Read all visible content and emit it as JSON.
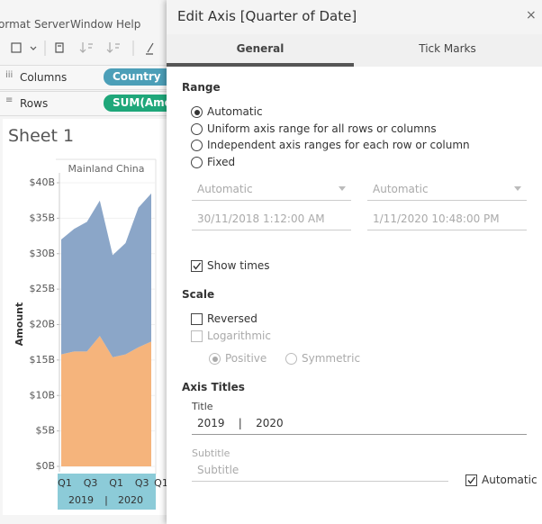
{
  "menu": [
    "ormat",
    "Server",
    "Window",
    "Help"
  ],
  "shelves": {
    "columns": {
      "label": "Columns",
      "pill": "Country",
      "color": "#4c9fb8"
    },
    "rows": {
      "label": "Rows",
      "pill": "SUM(Amou",
      "color": "#1fa77a"
    }
  },
  "sheet_title": "Sheet 1",
  "chart_data": {
    "type": "area",
    "stacked": true,
    "pane_header": "Mainland China",
    "y_label": "Amount",
    "categories": [
      "Q1",
      null,
      "Q3",
      null,
      "Q1",
      null,
      "Q3",
      null
    ],
    "years": [
      "2019",
      "2020"
    ],
    "year_separator": "|",
    "clipped_categories": [
      "Q1"
    ],
    "series": [
      {
        "color": "#f5b47c",
        "values": [
          15.8,
          16.2,
          16.2,
          18.4,
          15.4,
          15.8,
          16.8,
          17.6
        ]
      },
      {
        "color": "#8ba6c8",
        "values": [
          16.2,
          17.3,
          18.3,
          19.1,
          14.4,
          15.7,
          19.7,
          20.9
        ]
      }
    ],
    "ylim": [
      0,
      40
    ],
    "yticks": [
      {
        "value": 0,
        "label": "$0B"
      },
      {
        "value": 5,
        "label": "$5B"
      },
      {
        "value": 10,
        "label": "$10B"
      },
      {
        "value": 15,
        "label": "$15B"
      },
      {
        "value": 20,
        "label": "$20B"
      },
      {
        "value": 25,
        "label": "$25B"
      },
      {
        "value": 30,
        "label": "$30B"
      },
      {
        "value": 35,
        "label": "$35B"
      },
      {
        "value": 40,
        "label": "$40B"
      }
    ],
    "grid": true
  },
  "dialog": {
    "title": "Edit Axis [Quarter of Date]",
    "close": "×",
    "tabs": [
      "General",
      "Tick Marks"
    ],
    "active_tab": 0,
    "range": {
      "heading": "Range",
      "options": [
        "Automatic",
        "Uniform axis range for all rows or columns",
        "Independent axis ranges for each row or column",
        "Fixed"
      ],
      "selected": 0,
      "start_mode": "Automatic",
      "end_mode": "Automatic",
      "start_value": "30/11/2018 1:12:00 AM",
      "end_value": "1/11/2020 10:48:00 PM",
      "show_times": {
        "label": "Show times",
        "checked": true
      }
    },
    "scale": {
      "heading": "Scale",
      "reversed": {
        "label": "Reversed",
        "checked": false
      },
      "logarithmic": {
        "label": "Logarithmic",
        "checked": false
      },
      "log_options": [
        "Positive",
        "Symmetric"
      ],
      "log_selected": 0
    },
    "axis_titles": {
      "heading": "Axis Titles",
      "title_label": "Title",
      "title_value": "2019    |    2020",
      "subtitle_label": "Subtitle",
      "subtitle_placeholder": "Subtitle",
      "automatic": {
        "label": "Automatic",
        "checked": true
      }
    }
  }
}
